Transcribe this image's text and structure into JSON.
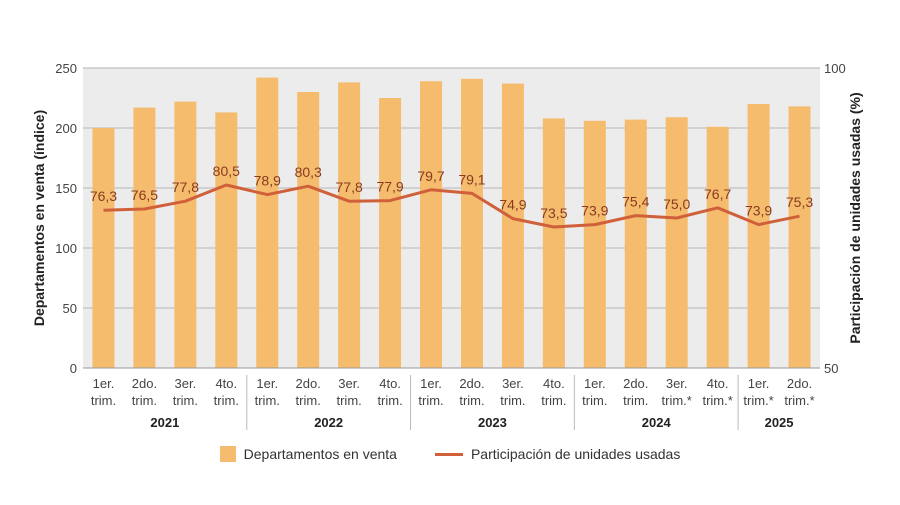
{
  "chart_data": {
    "type": "bar+line",
    "categories": [
      "1er. trim.",
      "2do. trim.",
      "3er. trim.",
      "4to. trim.",
      "1er. trim.",
      "2do. trim.",
      "3er. trim.",
      "4to. trim.",
      "1er. trim.",
      "2do. trim.",
      "3er. trim.",
      "4to. trim.",
      "1er. trim.",
      "2do. trim.",
      "3er. trim.*",
      "4to. trim.*",
      "1er. trim.*",
      "2do. trim.*"
    ],
    "years": [
      {
        "label": "2021",
        "span": 4
      },
      {
        "label": "2022",
        "span": 4
      },
      {
        "label": "2023",
        "span": 4
      },
      {
        "label": "2024",
        "span": 4
      },
      {
        "label": "2025",
        "span": 2
      }
    ],
    "series": [
      {
        "name": "Departamentos en venta",
        "type": "bar",
        "axis": "left",
        "color": "#f5bc6e",
        "values": [
          200,
          217,
          222,
          213,
          242,
          230,
          238,
          225,
          239,
          241,
          237,
          208,
          206,
          207,
          209,
          201,
          220,
          218
        ]
      },
      {
        "name": "Participación de unidades usadas",
        "type": "line",
        "axis": "right",
        "color": "#d0603a",
        "values": [
          76.3,
          76.5,
          77.8,
          80.5,
          78.9,
          80.3,
          77.8,
          77.9,
          79.7,
          79.1,
          74.9,
          73.5,
          73.9,
          75.4,
          75.0,
          76.7,
          73.9,
          75.3
        ],
        "labels": [
          "76,3",
          "76,5",
          "77,8",
          "80,5",
          "78,9",
          "80,3",
          "77,8",
          "77,9",
          "79,7",
          "79,1",
          "74,9",
          "73,5",
          "73,9",
          "75,4",
          "75,0",
          "76,7",
          "73,9",
          "75,3"
        ]
      }
    ],
    "ylabel_left": "Departamentos en venta (índice)",
    "ylabel_right": "Participación de unidades usadas (%)",
    "ylim_left": [
      0,
      250
    ],
    "yticks_left": [
      "0",
      "50",
      "100",
      "150",
      "200",
      "250"
    ],
    "ylim_right": [
      50,
      100
    ],
    "yticks_right": [
      "50",
      "100"
    ],
    "grid": true,
    "legend_position": "bottom",
    "background": "#ececec"
  }
}
